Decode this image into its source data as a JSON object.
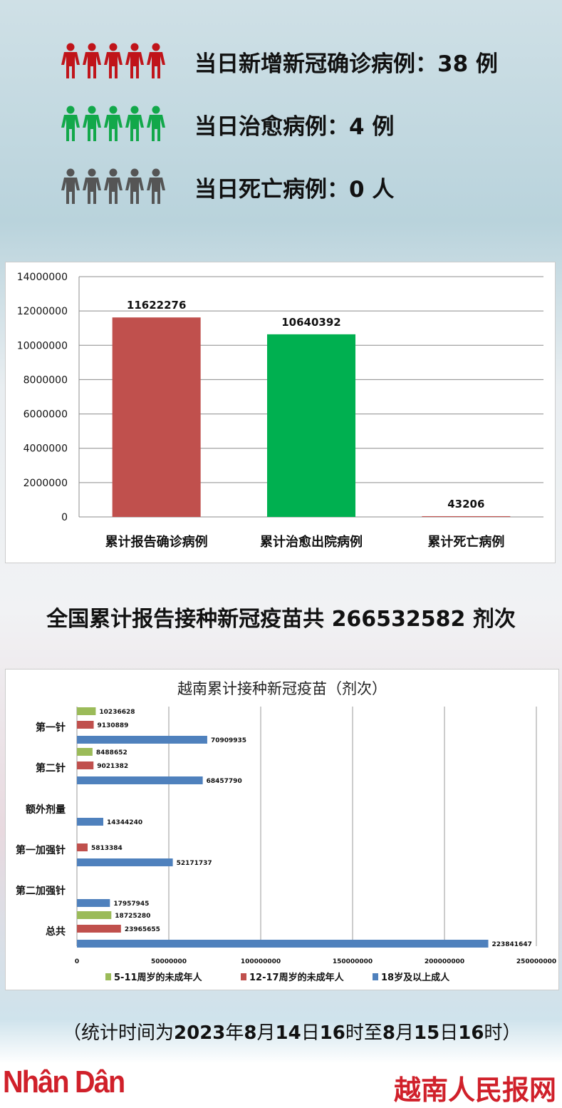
{
  "stats": [
    {
      "text": "当日新增新冠确诊病例：38 例",
      "color": "#c0141a",
      "icon": "person-icon"
    },
    {
      "text": "当日治愈病例：4 例",
      "color": "#12a84a",
      "icon": "person-icon"
    },
    {
      "text": "当日死亡病例：0 人",
      "color": "#555555",
      "icon": "person-icon"
    }
  ],
  "headline": {
    "prefix": "全国累计报告接种新冠疫苗共",
    "number": "266532582",
    "suffix": "剂次"
  },
  "note": {
    "open": "（统计时间为",
    "d1": "2023",
    "t1": "年",
    "d2": "8",
    "t2": "月",
    "d3": "14",
    "t3": "日",
    "d4": "16",
    "t4": "时至",
    "d5": "8",
    "t5": "月",
    "d6": "15",
    "t6": "日",
    "d7": "16",
    "t7": "时）"
  },
  "footer": {
    "left_logo": "Nhân Dân",
    "right_logo": "越南人民报网"
  },
  "chart_data": [
    {
      "type": "bar",
      "title": "",
      "categories": [
        "累计报告确诊病例",
        "累计治愈出院病例",
        "累计死亡病例"
      ],
      "values": [
        11622276,
        10640392,
        43206
      ],
      "colors": [
        "#c0504d",
        "#00b050",
        "#c0504d"
      ],
      "ylim": [
        0,
        14000000
      ],
      "yticks": [
        0,
        2000000,
        4000000,
        6000000,
        8000000,
        10000000,
        12000000,
        14000000
      ],
      "grid": true
    },
    {
      "type": "bar",
      "orientation": "horizontal",
      "title": "越南累计接种新冠疫苗（剂次）",
      "categories": [
        "第一针",
        "第二针",
        "额外剂量",
        "第一加强针",
        "第二加强针",
        "总共"
      ],
      "series": [
        {
          "name": "5-11周岁的未成年人",
          "color": "#9bbb59",
          "values": [
            10236628,
            8488652,
            null,
            null,
            null,
            18725280
          ]
        },
        {
          "name": "12-17周岁的未成年人",
          "color": "#c0504d",
          "values": [
            9130889,
            9021382,
            null,
            5813384,
            null,
            23965655
          ]
        },
        {
          "name": "18岁及以上成人",
          "color": "#4f81bd",
          "values": [
            70909935,
            68457790,
            14344240,
            52171737,
            17957945,
            223841647
          ]
        }
      ],
      "xlim": [
        0,
        250000000
      ],
      "xticks": [
        0,
        50000000,
        100000000,
        150000000,
        200000000,
        250000000
      ],
      "grid": true,
      "legend": "bottom"
    }
  ]
}
